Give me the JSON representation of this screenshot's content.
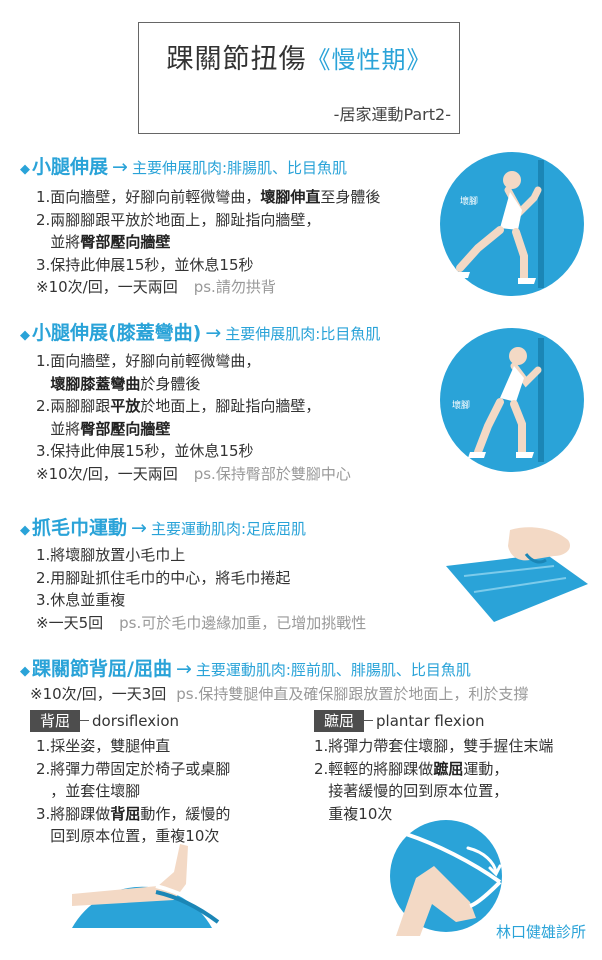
{
  "header": {
    "title_main": "踝關節扭傷",
    "title_accent": "《慢性期》",
    "subtitle": "-居家運動Part2-"
  },
  "sections": [
    {
      "name": "小腿伸展",
      "muscle": "主要伸展肌肉:腓腸肌、比目魚肌",
      "lines": [
        {
          "pre": "1.面向牆壁，好腳向前輕微彎曲，",
          "bold": "壞腳伸直",
          "post": "至身體後"
        },
        {
          "pre": "2.兩腳腳跟平放於地面上，腳趾指向牆壁，",
          "bold": "",
          "post": ""
        },
        {
          "pre": "   並將",
          "bold": "臀部壓向牆壁",
          "post": ""
        },
        {
          "pre": "3.保持此伸展15秒，並休息15秒",
          "bold": "",
          "post": ""
        }
      ],
      "note": "※10次/回，一天兩回",
      "ps": "ps.請勿拱背",
      "image_label": "壞腳"
    },
    {
      "name": "小腿伸展(膝蓋彎曲)",
      "muscle": "主要伸展肌肉:比目魚肌",
      "lines": [
        {
          "pre": "1.面向牆壁，好腳向前輕微彎曲，",
          "bold": "",
          "post": ""
        },
        {
          "pre": "   ",
          "bold": "壞腳膝蓋彎曲",
          "post": "於身體後"
        },
        {
          "pre": "2.兩腳腳跟",
          "bold": "平放",
          "post": "於地面上，腳趾指向牆壁，"
        },
        {
          "pre": "   並將",
          "bold": "臀部壓向牆壁",
          "post": ""
        },
        {
          "pre": "3.保持此伸展15秒，並休息15秒",
          "bold": "",
          "post": ""
        }
      ],
      "note": "※10次/回，一天兩回",
      "ps": "ps.保持臀部於雙腳中心",
      "image_label": "壞腳"
    },
    {
      "name": "抓毛巾運動",
      "muscle": "主要運動肌肉:足底屈肌",
      "lines": [
        {
          "pre": "1.將壞腳放置小毛巾上",
          "bold": "",
          "post": ""
        },
        {
          "pre": "2.用腳趾抓住毛巾的中心，將毛巾捲起",
          "bold": "",
          "post": ""
        },
        {
          "pre": "3.休息並重複",
          "bold": "",
          "post": ""
        }
      ],
      "note": "※一天5回",
      "ps": "ps.可於毛巾邊緣加重，已增加挑戰性"
    },
    {
      "name": "踝關節背屈/屈曲",
      "muscle": "主要運動肌肉:脛前肌、腓腸肌、比目魚肌",
      "note": "※10次/回，一天3回",
      "ps": "ps.保持雙腿伸直及確保腳跟放置於地面上，利於支撐",
      "left": {
        "tag": "背屈",
        "term": "dorsiflexion",
        "lines": [
          {
            "pre": "1.採坐姿，雙腿伸直",
            "bold": "",
            "post": ""
          },
          {
            "pre": "2.將彈力帶固定於椅子或桌腳",
            "bold": "",
            "post": ""
          },
          {
            "pre": "   ，並套住壞腳",
            "bold": "",
            "post": ""
          },
          {
            "pre": "3.將腳踝做",
            "bold": "背屈",
            "post": "動作，緩慢的"
          },
          {
            "pre": "   回到原本位置，重複10次",
            "bold": "",
            "post": ""
          }
        ]
      },
      "right": {
        "tag": "蹠屈",
        "term": "plantar flexion",
        "lines": [
          {
            "pre": "1.將彈力帶套住壞腳，雙手握住末端",
            "bold": "",
            "post": ""
          },
          {
            "pre": "2.輕輕的將腳踝做",
            "bold": "蹠屈",
            "post": "運動，"
          },
          {
            "pre": "   接著緩慢的回到原本位置，",
            "bold": "",
            "post": ""
          },
          {
            "pre": "   重複10次",
            "bold": "",
            "post": ""
          }
        ]
      }
    }
  ],
  "footer": "林口健雄診所",
  "colors": {
    "accent": "#2aa3d8",
    "circle": "#2aa3d8",
    "tag_bg": "#4d4d4d"
  }
}
